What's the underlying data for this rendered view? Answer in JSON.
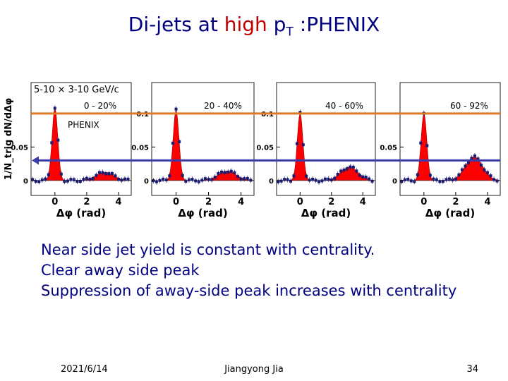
{
  "slide": {
    "title_pre": "Di-jets at ",
    "title_highlight": "high",
    "title_p": " p",
    "title_sub": "T",
    "title_post": " :PHENIX",
    "bullets": [
      "Near side jet yield is constant with centrality.",
      "Clear away side peak",
      "Suppression of away-side peak increases with centrality"
    ],
    "footer": {
      "date": "2021/6/14",
      "author": "Jiangyong Jia",
      "page": "34"
    }
  },
  "colors": {
    "title": "#000080",
    "highlight": "#c00000",
    "fill": "#ff0000",
    "orange_line": "#e07a20",
    "blue_arrow": "#3a3aaa"
  },
  "chart_data": {
    "type": "area",
    "ylabel": "1/N_trig dN/dΔφ",
    "xlabel": "Δφ (rad)",
    "kinematics": "5-10 × 3-10 GeV/c",
    "experiment_label": "PHENIX",
    "xlim": [
      -1.5,
      4.8
    ],
    "x_ticks": [
      "0",
      "2",
      "4"
    ],
    "panels": [
      {
        "centrality": "0 - 20%",
        "ylim": [
          -0.015,
          0.14
        ],
        "y_ticks": [
          {
            "v": 0,
            "t": "0"
          },
          {
            "v": 0.05,
            "t": "0.05"
          }
        ],
        "near_peak": 0.108,
        "away_peak": 0.012
      },
      {
        "centrality": "20 - 40%",
        "ylim": [
          -0.015,
          0.14
        ],
        "y_ticks": [
          {
            "v": 0,
            "t": "0"
          },
          {
            "v": 0.05,
            "t": "0.05"
          },
          {
            "v": 0.1,
            "t": "0.1"
          }
        ],
        "near_peak": 0.105,
        "away_peak": 0.014
      },
      {
        "centrality": "40 - 60%",
        "ylim": [
          -0.015,
          0.14
        ],
        "y_ticks": [
          {
            "v": 0,
            "t": "0"
          },
          {
            "v": 0.05,
            "t": "0.05"
          },
          {
            "v": 0.1,
            "t": "0.1"
          }
        ],
        "near_peak": 0.1,
        "away_peak": 0.02
      },
      {
        "centrality": "60 - 92%",
        "ylim": [
          -0.015,
          0.14
        ],
        "y_ticks": [
          {
            "v": 0,
            "t": "0"
          },
          {
            "v": 0.05,
            "t": "0.05"
          }
        ],
        "near_peak": 0.1,
        "away_peak": 0.035
      }
    ],
    "reference_lines": [
      {
        "level": 0.1,
        "color": "orange"
      },
      {
        "level": 0.03,
        "color": "blue"
      }
    ]
  }
}
